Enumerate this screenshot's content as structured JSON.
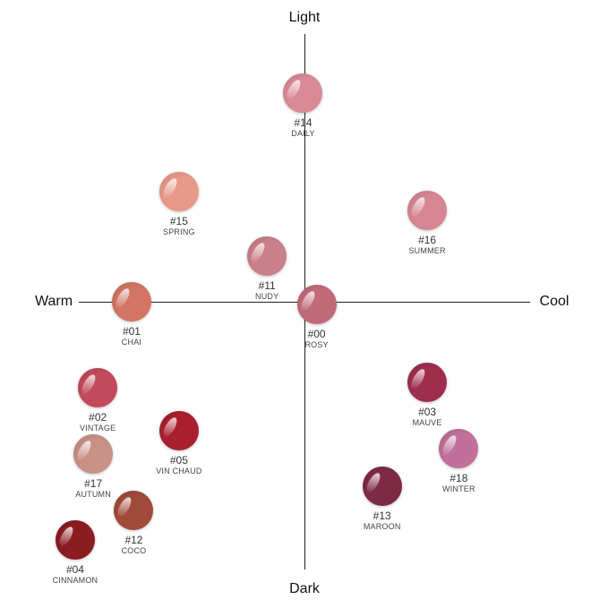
{
  "axes": {
    "top": "Light",
    "bottom": "Dark",
    "left": "Warm",
    "right": "Cool"
  },
  "chart_data": {
    "type": "scatter",
    "xlabel_left": "Warm",
    "xlabel_right": "Cool",
    "ylabel_top": "Light",
    "ylabel_bottom": "Dark",
    "xlim": [
      -1,
      1
    ],
    "ylim": [
      -1,
      1
    ],
    "points": [
      {
        "code": "#14",
        "name": "DAILY",
        "x": -0.01,
        "y": 0.78,
        "color": "#d98a94"
      },
      {
        "code": "#15",
        "name": "SPRING",
        "x": -0.56,
        "y": 0.41,
        "color": "#e8998a"
      },
      {
        "code": "#16",
        "name": "SUMMER",
        "x": 0.54,
        "y": 0.34,
        "color": "#d68592"
      },
      {
        "code": "#11",
        "name": "NUDY",
        "x": -0.17,
        "y": 0.17,
        "color": "#c98088"
      },
      {
        "code": "#01",
        "name": "CHAI",
        "x": -0.77,
        "y": 0.0,
        "color": "#d27563"
      },
      {
        "code": "#00",
        "name": "ROSY",
        "x": 0.05,
        "y": -0.01,
        "color": "#c26b78"
      },
      {
        "code": "#02",
        "name": "VINTAGE",
        "x": -0.92,
        "y": -0.32,
        "color": "#c24a5a"
      },
      {
        "code": "#03",
        "name": "MAUVE",
        "x": 0.54,
        "y": -0.3,
        "color": "#9e2d4e"
      },
      {
        "code": "#05",
        "name": "VIN CHAUD",
        "x": -0.56,
        "y": -0.48,
        "color": "#a8202f"
      },
      {
        "code": "#18",
        "name": "WINTER",
        "x": 0.68,
        "y": -0.55,
        "color": "#c0709a"
      },
      {
        "code": "#17",
        "name": "AUTUMN",
        "x": -0.94,
        "y": -0.57,
        "color": "#c99086"
      },
      {
        "code": "#13",
        "name": "MAROON",
        "x": 0.34,
        "y": -0.69,
        "color": "#7e2a45"
      },
      {
        "code": "#12",
        "name": "COCO",
        "x": -0.76,
        "y": -0.78,
        "color": "#a04a3a"
      },
      {
        "code": "#04",
        "name": "CINNAMON",
        "x": -1.02,
        "y": -0.89,
        "color": "#8a1c22"
      }
    ]
  }
}
